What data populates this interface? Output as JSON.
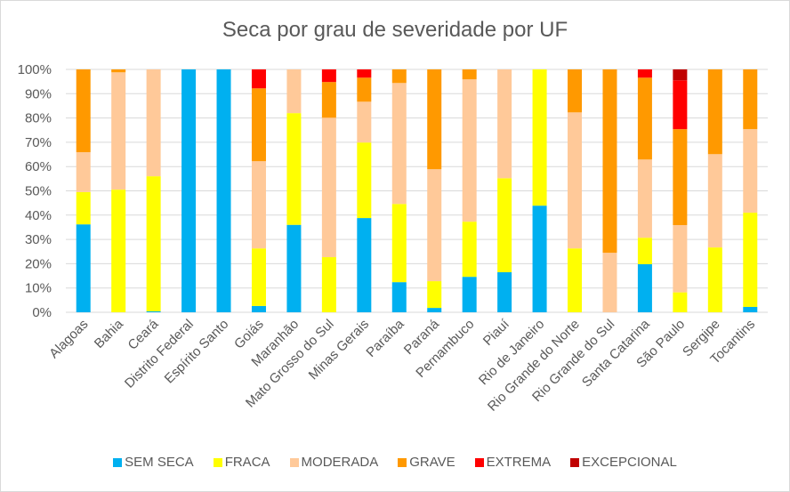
{
  "chart_data": {
    "type": "bar",
    "stacked": true,
    "normalized": true,
    "title": "Seca por grau de severidade por UF",
    "xlabel": "",
    "ylabel": "",
    "ylim": [
      0,
      100
    ],
    "yticks": [
      "0%",
      "10%",
      "20%",
      "30%",
      "40%",
      "50%",
      "60%",
      "70%",
      "80%",
      "90%",
      "100%"
    ],
    "grid": true,
    "legend_position": "bottom",
    "categories": [
      "Alagoas",
      "Bahia",
      "Ceará",
      "Distrito Federal",
      "Espírito Santo",
      "Goiás",
      "Maranhão",
      "Mato Grosso do Sul",
      "Minas Gerais",
      "Paraíba",
      "Paraná",
      "Pernambuco",
      "Piauí",
      "Rio de Janeiro",
      "Rio Grande do Norte",
      "Rio Grande do Sul",
      "Santa Catarina",
      "São Paulo",
      "Sergipe",
      "Tocantins"
    ],
    "series": [
      {
        "name": "SEM SECA",
        "color": "#00B0F0",
        "values": [
          36.2,
          0,
          0.4,
          100,
          100,
          2.6,
          36.0,
          0,
          38.8,
          12.4,
          1.8,
          14.6,
          16.5,
          43.9,
          0,
          0,
          19.8,
          0,
          0,
          2.2
        ]
      },
      {
        "name": "FRACA",
        "color": "#FFFF00",
        "values": [
          13.3,
          50.5,
          55.6,
          0,
          0,
          23.7,
          46.0,
          22.7,
          31.1,
          32.2,
          11.0,
          22.7,
          38.7,
          56.1,
          26.3,
          0,
          10.9,
          8.2,
          26.7,
          38.8
        ]
      },
      {
        "name": "MODERADA",
        "color": "#FFC999",
        "values": [
          16.4,
          48.3,
          44.0,
          0,
          0,
          35.9,
          18.0,
          57.4,
          16.8,
          49.8,
          46.1,
          58.6,
          44.8,
          0,
          56.0,
          24.5,
          32.2,
          27.7,
          38.4,
          34.4
        ]
      },
      {
        "name": "GRAVE",
        "color": "#FF9900",
        "values": [
          34.1,
          1.2,
          0,
          0,
          0,
          30.0,
          0,
          14.7,
          9.9,
          5.6,
          41.1,
          4.1,
          0,
          0,
          17.7,
          75.5,
          33.7,
          39.5,
          34.9,
          24.6
        ]
      },
      {
        "name": "EXTREMA",
        "color": "#FF0000",
        "values": [
          0,
          0,
          0,
          0,
          0,
          7.8,
          0,
          5.2,
          3.4,
          0,
          0,
          0,
          0,
          0,
          0,
          0,
          3.4,
          20.1,
          0,
          0
        ]
      },
      {
        "name": "EXCEPCIONAL",
        "color": "#C00000",
        "values": [
          0,
          0,
          0,
          0,
          0,
          0,
          0,
          0,
          0,
          0,
          0,
          0,
          0,
          0,
          0,
          0,
          0,
          4.5,
          0,
          0
        ]
      }
    ]
  }
}
